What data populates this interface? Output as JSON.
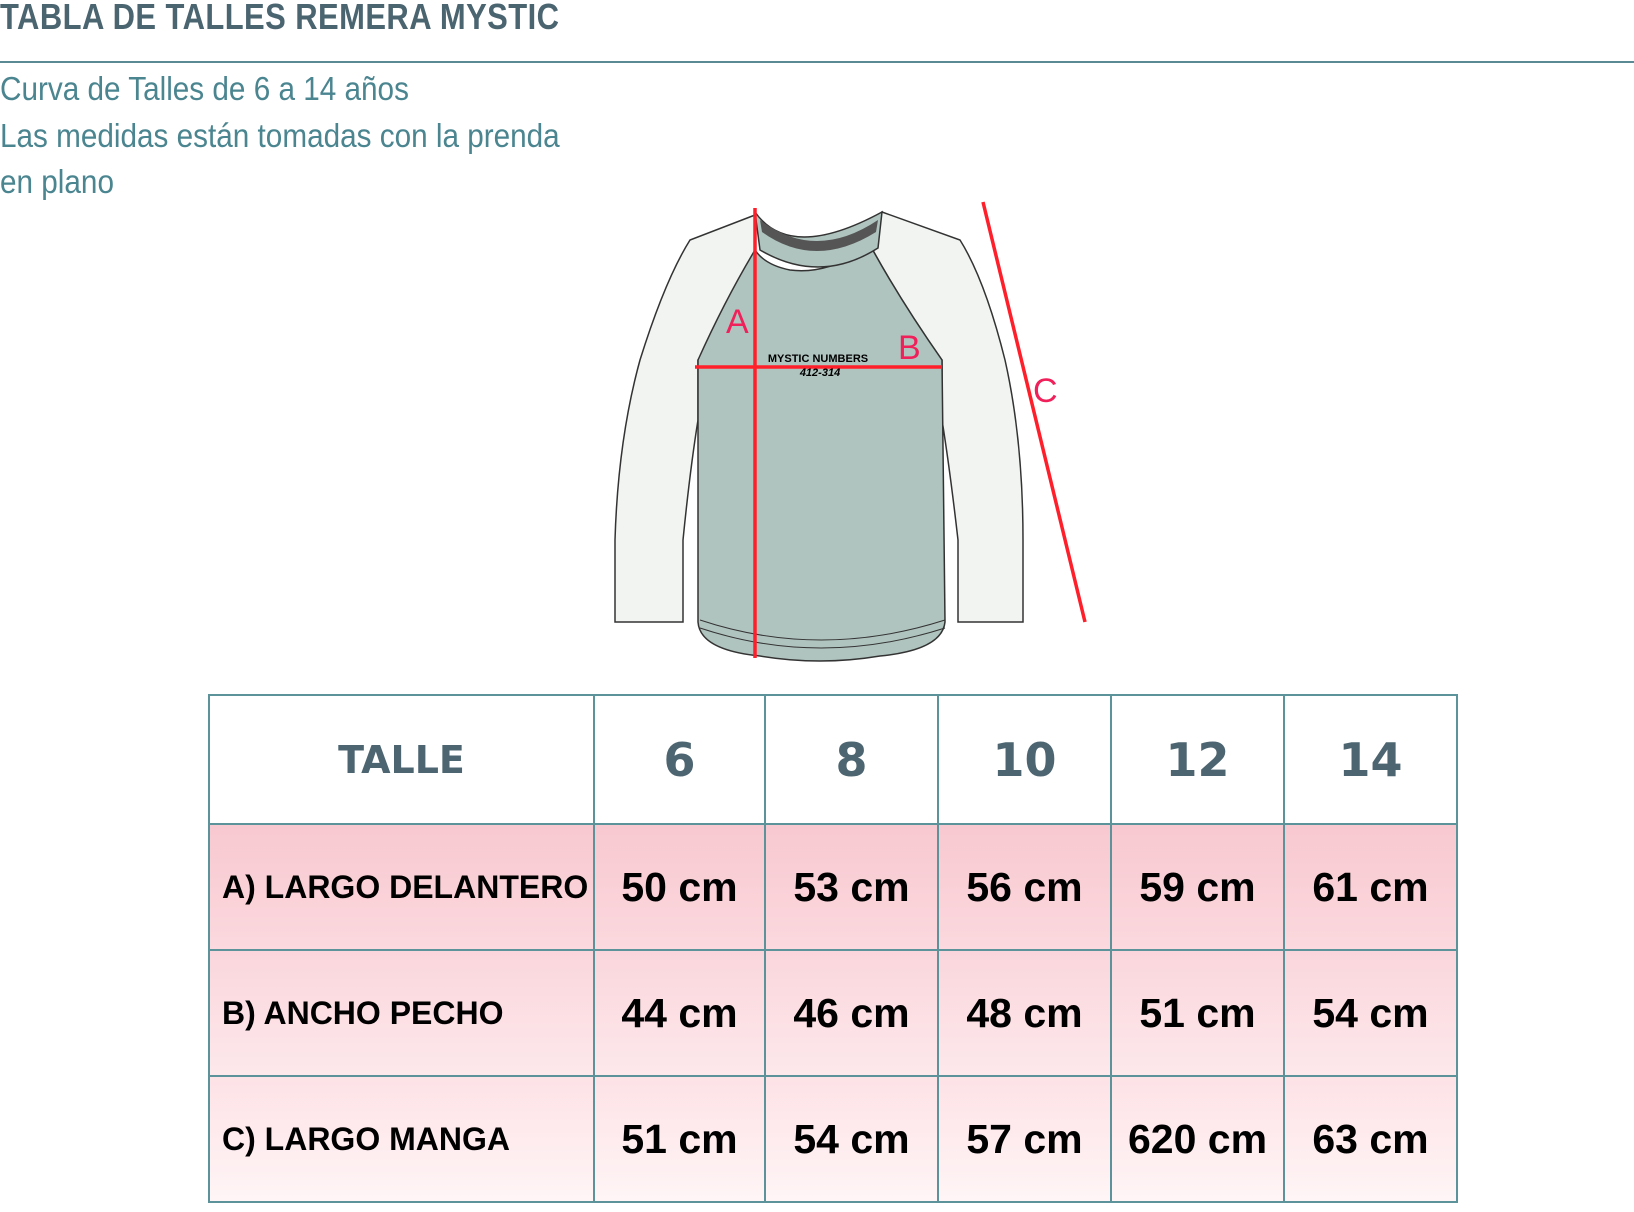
{
  "title": "TABLA DE TALLES REMERA MYSTIC",
  "subtitle_lines": [
    "Curva de Talles de 6 a 14 años",
    "Las medidas están tomadas con la prenda",
    "en plano"
  ],
  "diagram": {
    "labels": {
      "a": "A",
      "b": "B",
      "c": "C"
    },
    "shirt_print": {
      "line1": "MYSTIC NUMBERS",
      "line2": "412-314"
    },
    "colors": {
      "body": "#b0c4bf",
      "sleeves": "#f1f4f1",
      "measure_lines": "#ff1f2a",
      "labels": "#f0205a"
    }
  },
  "table": {
    "header_label": "TALLE",
    "sizes": [
      "6",
      "8",
      "10",
      "12",
      "14"
    ],
    "rows": [
      {
        "label": "A) LARGO DELANTERO",
        "values": [
          "50 cm",
          "53 cm",
          "56 cm",
          "59 cm",
          "61 cm"
        ]
      },
      {
        "label": "B) ANCHO PECHO",
        "values": [
          "44 cm",
          "46 cm",
          "48 cm",
          "51 cm",
          "54 cm"
        ]
      },
      {
        "label": "C) LARGO MANGA",
        "values": [
          "51 cm",
          "54 cm",
          "57 cm",
          "620 cm",
          "63 cm"
        ]
      }
    ]
  }
}
